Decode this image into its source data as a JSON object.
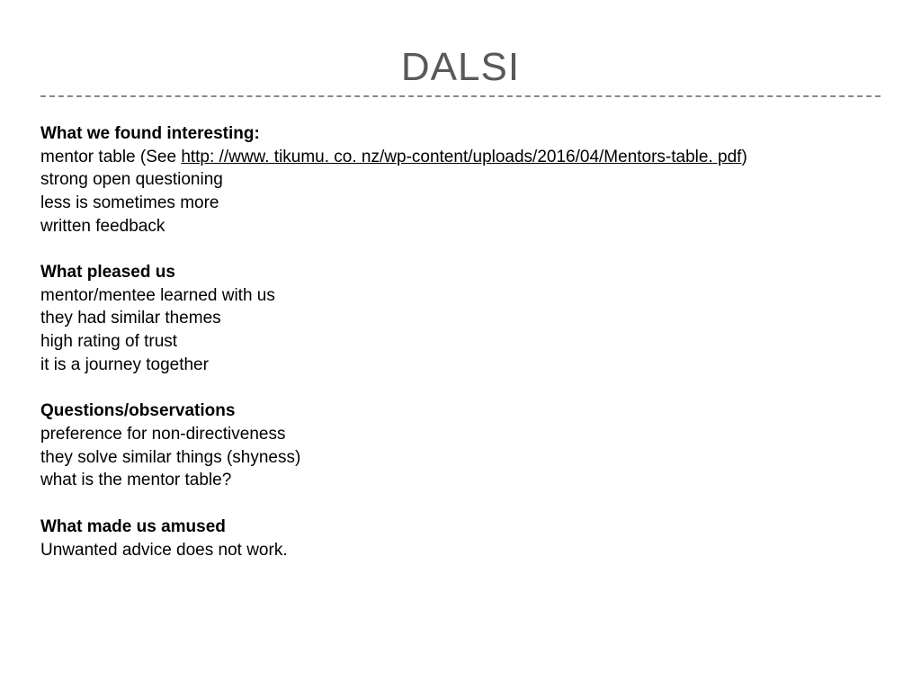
{
  "title": "DALSI",
  "sections": [
    {
      "heading": "What we found interesting:",
      "lines": [
        {
          "prefix": "mentor table (See ",
          "link": "http: //www. tikumu. co. nz/wp-content/uploads/2016/04/Mentors-table. pdf",
          "suffix": ")"
        },
        {
          "text": "strong open questioning"
        },
        {
          "text": "less is sometimes more"
        },
        {
          "text": "written feedback"
        }
      ]
    },
    {
      "heading": "What pleased us",
      "lines": [
        {
          "text": "mentor/mentee learned with us"
        },
        {
          "text": "they had similar themes"
        },
        {
          "text": "high rating of trust"
        },
        {
          "text": "it is a journey together"
        }
      ]
    },
    {
      "heading": "Questions/observations",
      "lines": [
        {
          "text": "preference for non-directiveness"
        },
        {
          "text": "they solve similar things (shyness)"
        },
        {
          "text": "what is the mentor table?"
        }
      ]
    },
    {
      "heading": "What made us amused",
      "lines": [
        {
          "text": "Unwanted advice does not work."
        }
      ]
    }
  ],
  "styling": {
    "title_color": "#595959",
    "title_fontsize": 44,
    "body_fontsize": 19,
    "body_color": "#000000",
    "divider_color": "#888888",
    "background_color": "#ffffff",
    "link_color": "#000000"
  }
}
